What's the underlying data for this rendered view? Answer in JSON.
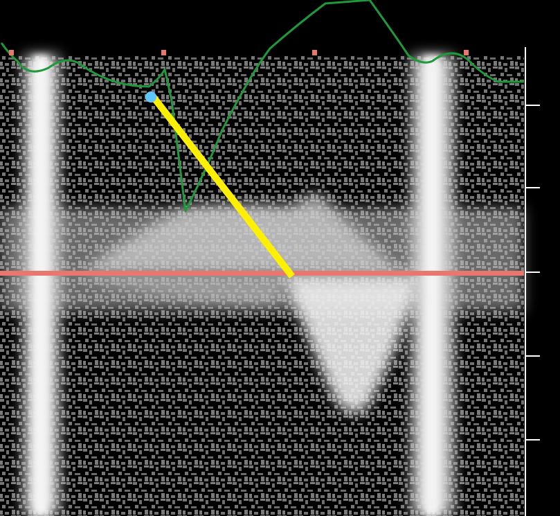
{
  "image": {
    "kind": "spectral-doppler-ultrasound",
    "colors": {
      "background": "#000000",
      "speckle": "#7a7a7a",
      "flow_signal": "#f2f2f2",
      "baseline": "#e8776d",
      "ecg_trace": "#1f9a3a",
      "measurement_line": "#ffef00",
      "cursor_point": "#5cc8ff",
      "scale_ticks": "#ffffff",
      "ecg_markers": "#e8776d"
    },
    "overlays": [
      "ecg-trace",
      "baseline",
      "measurement-caliper",
      "velocity-scale"
    ]
  }
}
